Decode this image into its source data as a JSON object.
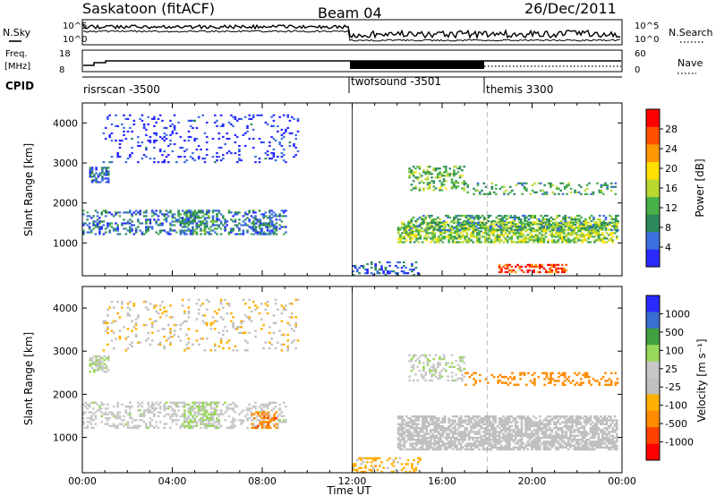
{
  "header": {
    "title": "Saskatoon (fitACF)",
    "beam": "Beam 04",
    "date": "26/Dec/2011"
  },
  "noise_panel": {
    "left_label": "N.Sky",
    "right_label": "N.Search",
    "left_ticks": [
      "10^5",
      "10^0"
    ],
    "right_ticks": [
      "10^5",
      "10^0"
    ]
  },
  "freq_panel": {
    "left_label_1": "Freq.",
    "left_label_2": "[MHz]",
    "right_label": "Nave",
    "left_ticks": [
      "18",
      "8"
    ],
    "right_ticks": [
      "60",
      "0"
    ]
  },
  "cpid": {
    "label": "CPID",
    "modes": [
      {
        "name": "risrscan -3500",
        "start_hour": 0
      },
      {
        "name": "twofsound -3501",
        "start_hour": 12
      },
      {
        "name": "themis 3300",
        "start_hour": 18
      }
    ]
  },
  "colors": {
    "power_scale": [
      "#2a2aff",
      "#3b6ee0",
      "#2e8a5a",
      "#48b048",
      "#b8d830",
      "#ffe000",
      "#ff9800",
      "#ff5000",
      "#ff0000"
    ],
    "velocity_scale": [
      "#ff0000",
      "#ff4000",
      "#ff8c00",
      "#ffb000",
      "#c0c0c0",
      "#c8c8c8",
      "#98d858",
      "#3fa03f",
      "#3a6ed0",
      "#2a2aff"
    ]
  },
  "chart_data": [
    {
      "type": "heatmap",
      "name": "Power",
      "ylabel": "Slant Range [km]",
      "xlabel": "Time UT",
      "ylim": [
        180,
        4500
      ],
      "yticks": [
        "1000",
        "2000",
        "3000",
        "4000"
      ],
      "xlim": [
        0,
        24
      ],
      "xticks": [
        "00:00",
        "04:00",
        "08:00",
        "12:00",
        "16:00",
        "20:00",
        "00:00"
      ],
      "colorbar": {
        "title": "Power [dB]",
        "ticks": [
          "4",
          "8",
          "12",
          "16",
          "20",
          "24",
          "28"
        ],
        "range": [
          0,
          30
        ]
      },
      "regions": [
        {
          "t": [
            0.9,
            9.6
          ],
          "r": [
            3000,
            4200
          ],
          "level": 2,
          "density": 0.12
        },
        {
          "t": [
            0.3,
            1.2
          ],
          "r": [
            2500,
            2900
          ],
          "level": 6,
          "density": 0.5
        },
        {
          "t": [
            0.0,
            9.0
          ],
          "r": [
            1200,
            1800
          ],
          "level": 6,
          "density": 0.35
        },
        {
          "t": [
            4.5,
            6.0
          ],
          "r": [
            1200,
            1800
          ],
          "level": 9,
          "density": 0.45
        },
        {
          "t": [
            7.5,
            8.6
          ],
          "r": [
            1200,
            1600
          ],
          "level": 6,
          "density": 0.45
        },
        {
          "t": [
            14.0,
            23.8
          ],
          "r": [
            1000,
            1500
          ],
          "level": 14,
          "density": 0.6
        },
        {
          "t": [
            14.5,
            23.8
          ],
          "r": [
            1300,
            1700
          ],
          "level": 10,
          "density": 0.45
        },
        {
          "t": [
            14.5,
            17.0
          ],
          "r": [
            2300,
            2900
          ],
          "level": 12,
          "density": 0.35
        },
        {
          "t": [
            17.0,
            23.8
          ],
          "r": [
            2200,
            2500
          ],
          "level": 10,
          "density": 0.25
        },
        {
          "t": [
            18.5,
            21.5
          ],
          "r": [
            250,
            450
          ],
          "level": 26,
          "density": 0.5
        },
        {
          "t": [
            12.0,
            15.0
          ],
          "r": [
            180,
            500
          ],
          "level": 5,
          "density": 0.3
        }
      ]
    },
    {
      "type": "heatmap",
      "name": "Velocity",
      "ylabel": "Slant Range [km]",
      "xlabel": "Time UT",
      "ylim": [
        180,
        4500
      ],
      "yticks": [
        "1000",
        "2000",
        "3000",
        "4000"
      ],
      "xlim": [
        0,
        24
      ],
      "xticks": [
        "00:00",
        "04:00",
        "08:00",
        "12:00",
        "16:00",
        "20:00",
        "00:00"
      ],
      "colorbar": {
        "title": "Velocity [m s⁻¹]",
        "ticks": [
          "1000",
          "500",
          "100",
          "25",
          "-25",
          "-100",
          "-500",
          "-1000"
        ]
      },
      "regions": [
        {
          "t": [
            0.9,
            9.6
          ],
          "r": [
            3000,
            4200
          ],
          "level": -20,
          "density": 0.12
        },
        {
          "t": [
            0.3,
            1.2
          ],
          "r": [
            2500,
            2900
          ],
          "level": 80,
          "density": 0.5
        },
        {
          "t": [
            0.0,
            9.0
          ],
          "r": [
            1200,
            1800
          ],
          "level": 60,
          "density": 0.35
        },
        {
          "t": [
            4.5,
            6.0
          ],
          "r": [
            1200,
            1800
          ],
          "level": 120,
          "density": 0.45
        },
        {
          "t": [
            7.5,
            8.6
          ],
          "r": [
            1200,
            1600
          ],
          "level": -400,
          "density": 0.45
        },
        {
          "t": [
            14.0,
            23.8
          ],
          "r": [
            700,
            1500
          ],
          "level": 0,
          "density": 0.7
        },
        {
          "t": [
            14.5,
            17.0
          ],
          "r": [
            2300,
            2900
          ],
          "level": 80,
          "density": 0.35
        },
        {
          "t": [
            17.0,
            23.8
          ],
          "r": [
            2200,
            2500
          ],
          "level": -200,
          "density": 0.25
        },
        {
          "t": [
            12.0,
            15.0
          ],
          "r": [
            180,
            500
          ],
          "level": -60,
          "density": 0.3
        }
      ]
    }
  ],
  "axis": {
    "xlabel": "Time UT"
  }
}
